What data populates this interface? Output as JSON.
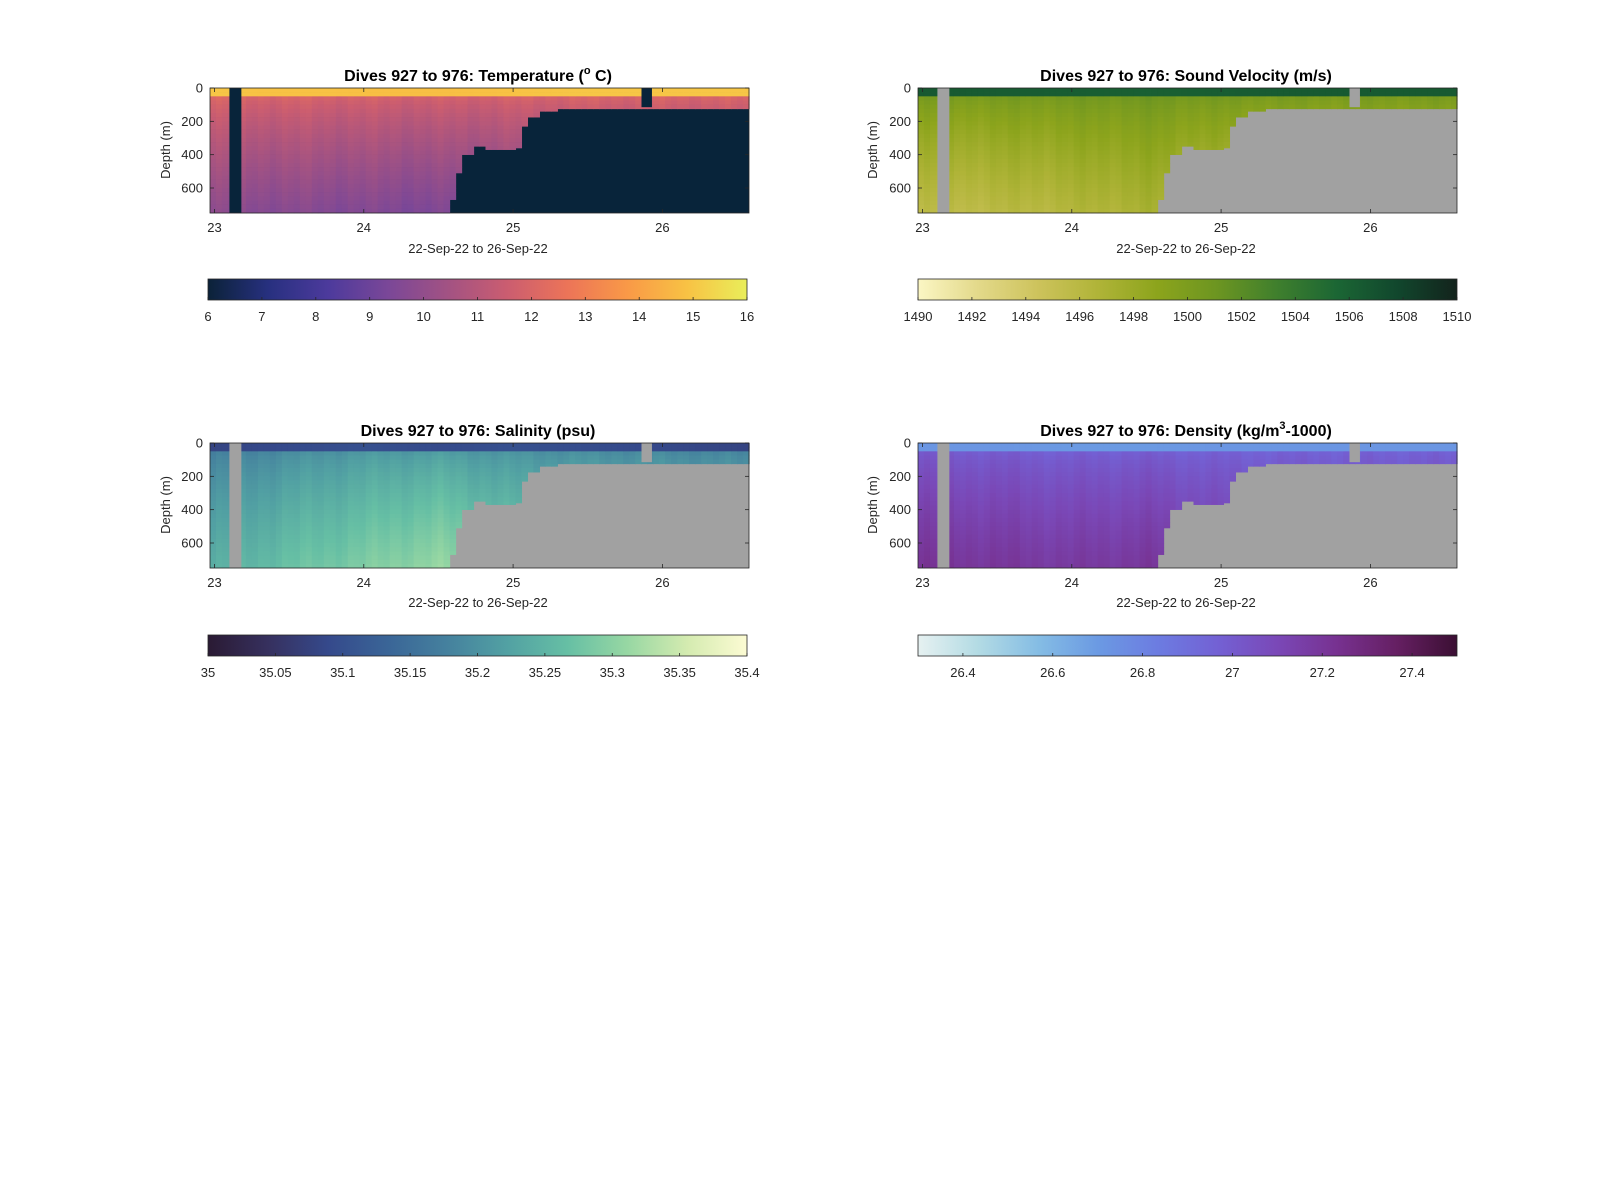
{
  "chart_data": [
    {
      "type": "heatmap",
      "title": "Dives 927 to 976: Temperature (",
      "title_sup": "o",
      "title_end": " C)",
      "xlabel": "22-Sep-22 to 26-Sep-22",
      "ylabel": "Depth (m)",
      "xlim": [
        22.97,
        26.58
      ],
      "ylim": [
        0,
        750
      ],
      "y_reversed": true,
      "x_ticks": [
        "23",
        "24",
        "25",
        "26"
      ],
      "y_ticks": [
        "0",
        "200",
        "400",
        "600"
      ],
      "colorbar": {
        "range": [
          6,
          16
        ],
        "ticks": [
          "6",
          "7",
          "8",
          "9",
          "10",
          "11",
          "12",
          "13",
          "14",
          "15",
          "16"
        ]
      },
      "colormap": [
        "#0b2238",
        "#27307f",
        "#4c3a9c",
        "#7a4798",
        "#a25283",
        "#cb5d70",
        "#ec7458",
        "#f99947",
        "#f8c244",
        "#e9ee5a"
      ],
      "mask_color": "#08243a",
      "gaps": [
        {
          "x0": 23.1,
          "x1": 23.18
        },
        {
          "x0": 25.86,
          "x1": 25.93,
          "depth": 115
        }
      ],
      "max_depth_profile": [
        [
          22.97,
          750
        ],
        [
          24.5,
          750
        ],
        [
          24.57,
          670
        ],
        [
          24.62,
          510
        ],
        [
          24.66,
          400
        ],
        [
          24.72,
          350
        ],
        [
          24.8,
          370
        ],
        [
          25.0,
          360
        ],
        [
          25.04,
          230
        ],
        [
          25.1,
          175
        ],
        [
          25.18,
          140
        ],
        [
          25.3,
          125
        ],
        [
          26.58,
          120
        ]
      ],
      "columns": [
        {
          "x": 22.97,
          "surface": 15.0,
          "deep": 9.8
        },
        {
          "x": 23.3,
          "surface": 14.9,
          "deep": 9.7
        },
        {
          "x": 23.7,
          "surface": 14.9,
          "deep": 9.6
        },
        {
          "x": 24.1,
          "surface": 14.8,
          "deep": 9.5
        },
        {
          "x": 24.5,
          "surface": 14.8,
          "deep": 9.4
        },
        {
          "x": 25.0,
          "surface": 14.9,
          "deep": 9.5
        },
        {
          "x": 25.5,
          "surface": 15.0,
          "deep": 9.6
        },
        {
          "x": 26.0,
          "surface": 15.0,
          "deep": 9.6
        },
        {
          "x": 26.58,
          "surface": 15.0,
          "deep": 9.6
        }
      ],
      "mixed_layer_depth": 50
    },
    {
      "type": "heatmap",
      "title": "Dives 927 to 976: Sound Velocity (m/s)",
      "xlabel": "22-Sep-22 to 26-Sep-22",
      "ylabel": "Depth (m)",
      "xlim": [
        22.97,
        26.58
      ],
      "ylim": [
        0,
        750
      ],
      "y_reversed": true,
      "x_ticks": [
        "23",
        "24",
        "25",
        "26"
      ],
      "y_ticks": [
        "0",
        "200",
        "400",
        "600"
      ],
      "colorbar": {
        "range": [
          1490,
          1510
        ],
        "ticks": [
          "1490",
          "1492",
          "1494",
          "1496",
          "1498",
          "1500",
          "1502",
          "1504",
          "1506",
          "1508",
          "1510"
        ]
      },
      "colormap": [
        "#fbf6c4",
        "#e3d98a",
        "#cdc35c",
        "#b0b438",
        "#8ca41c",
        "#6c9521",
        "#3f7f2d",
        "#1b6634",
        "#11472d",
        "#13231c"
      ],
      "mask_color": "#a1a1a1",
      "gaps": [
        {
          "x0": 23.1,
          "x1": 23.18
        },
        {
          "x0": 25.86,
          "x1": 25.93,
          "depth": 115
        }
      ],
      "max_depth_profile": [
        [
          22.97,
          750
        ],
        [
          24.5,
          750
        ],
        [
          24.57,
          670
        ],
        [
          24.62,
          510
        ],
        [
          24.66,
          400
        ],
        [
          24.72,
          350
        ],
        [
          24.8,
          370
        ],
        [
          25.0,
          360
        ],
        [
          25.04,
          230
        ],
        [
          25.1,
          175
        ],
        [
          25.18,
          140
        ],
        [
          25.3,
          125
        ],
        [
          26.58,
          120
        ]
      ],
      "columns": [
        {
          "x": 22.97,
          "surface": 1506.5,
          "deep": 1495.5
        },
        {
          "x": 23.5,
          "surface": 1506.3,
          "deep": 1495.8
        },
        {
          "x": 24.0,
          "surface": 1506.2,
          "deep": 1496.3
        },
        {
          "x": 24.5,
          "surface": 1506.0,
          "deep": 1497.0
        },
        {
          "x": 25.0,
          "surface": 1506.2,
          "deep": 1496.0
        },
        {
          "x": 25.5,
          "surface": 1506.4,
          "deep": 1495.5
        },
        {
          "x": 26.58,
          "surface": 1506.4,
          "deep": 1495.5
        }
      ],
      "mixed_layer_depth": 50
    },
    {
      "type": "heatmap",
      "title": "Dives 927 to 976: Salinity (psu)",
      "xlabel": "22-Sep-22 to 26-Sep-22",
      "ylabel": "Depth (m)",
      "xlim": [
        22.97,
        26.58
      ],
      "ylim": [
        0,
        750
      ],
      "y_reversed": true,
      "x_ticks": [
        "23",
        "24",
        "25",
        "26"
      ],
      "y_ticks": [
        "0",
        "200",
        "400",
        "600"
      ],
      "colorbar": {
        "range": [
          35,
          35.4
        ],
        "ticks": [
          "35",
          "35.05",
          "35.1",
          "35.15",
          "35.2",
          "35.25",
          "35.3",
          "35.35",
          "35.4"
        ]
      },
      "colormap": [
        "#2a1a33",
        "#36305e",
        "#35498b",
        "#3a6597",
        "#45819e",
        "#52a1a3",
        "#66bfa4",
        "#97d7a3",
        "#d4ebb0",
        "#fcfbd3"
      ],
      "mask_color": "#a1a1a1",
      "gaps": [
        {
          "x0": 23.1,
          "x1": 23.18
        },
        {
          "x0": 25.86,
          "x1": 25.93,
          "depth": 115
        }
      ],
      "max_depth_profile": [
        [
          22.97,
          750
        ],
        [
          24.5,
          750
        ],
        [
          24.57,
          670
        ],
        [
          24.62,
          510
        ],
        [
          24.66,
          400
        ],
        [
          24.72,
          350
        ],
        [
          24.8,
          370
        ],
        [
          25.0,
          360
        ],
        [
          25.04,
          230
        ],
        [
          25.1,
          175
        ],
        [
          25.18,
          140
        ],
        [
          25.3,
          125
        ],
        [
          26.58,
          120
        ]
      ],
      "columns": [
        {
          "x": 22.97,
          "surface": 35.08,
          "deep": 35.24
        },
        {
          "x": 23.5,
          "surface": 35.09,
          "deep": 35.27
        },
        {
          "x": 24.0,
          "surface": 35.1,
          "deep": 35.29
        },
        {
          "x": 24.5,
          "surface": 35.09,
          "deep": 35.31
        },
        {
          "x": 25.0,
          "surface": 35.1,
          "deep": 35.28
        },
        {
          "x": 26.58,
          "surface": 35.08,
          "deep": 35.26
        }
      ],
      "mixed_layer_depth": 50
    },
    {
      "type": "heatmap",
      "title": "Dives 927 to 976: Density (kg/m",
      "title_sup": "3",
      "title_end": "-1000)",
      "xlabel": "22-Sep-22 to 26-Sep-22",
      "ylabel": "Depth (m)",
      "xlim": [
        22.97,
        26.58
      ],
      "ylim": [
        0,
        750
      ],
      "y_reversed": true,
      "x_ticks": [
        "23",
        "24",
        "25",
        "26"
      ],
      "y_ticks": [
        "0",
        "200",
        "400",
        "600"
      ],
      "colorbar": {
        "range": [
          26.3,
          27.5
        ],
        "ticks": [
          "26.4",
          "26.6",
          "26.8",
          "27",
          "27.2",
          "27.4"
        ]
      },
      "colormap": [
        "#e6f1f1",
        "#b3dbe4",
        "#85bde4",
        "#6b9ae3",
        "#6c7ce1",
        "#7361d4",
        "#7a48b7",
        "#773190",
        "#651f62",
        "#3b0f33"
      ],
      "mask_color": "#a1a1a1",
      "gaps": [
        {
          "x0": 23.1,
          "x1": 23.18
        },
        {
          "x0": 25.86,
          "x1": 25.93,
          "depth": 115
        }
      ],
      "max_depth_profile": [
        [
          22.97,
          750
        ],
        [
          24.5,
          750
        ],
        [
          24.57,
          670
        ],
        [
          24.62,
          510
        ],
        [
          24.66,
          400
        ],
        [
          24.72,
          350
        ],
        [
          24.8,
          370
        ],
        [
          25.0,
          360
        ],
        [
          25.04,
          230
        ],
        [
          25.1,
          175
        ],
        [
          25.18,
          140
        ],
        [
          25.3,
          125
        ],
        [
          26.58,
          120
        ]
      ],
      "columns": [
        {
          "x": 22.97,
          "surface": 26.72,
          "deep": 27.22
        },
        {
          "x": 23.5,
          "surface": 26.72,
          "deep": 27.2
        },
        {
          "x": 24.0,
          "surface": 26.7,
          "deep": 27.18
        },
        {
          "x": 24.5,
          "surface": 26.7,
          "deep": 27.2
        },
        {
          "x": 25.0,
          "surface": 26.72,
          "deep": 27.15
        },
        {
          "x": 26.58,
          "surface": 26.72,
          "deep": 27.15
        }
      ],
      "mixed_layer_depth": 50
    }
  ]
}
